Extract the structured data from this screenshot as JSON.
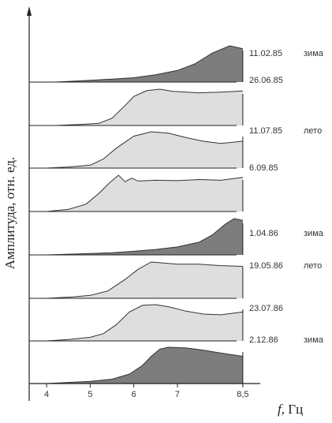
{
  "chart_data": {
    "type": "area",
    "xlabel_symbol": "f",
    "xlabel_unit": ", Гц",
    "ylabel": "Амплитуда, отн. ед.",
    "xlim": [
      3.6,
      8.9
    ],
    "xticks": [
      "4",
      "5",
      "6",
      "7",
      "8,5"
    ],
    "xtick_values": [
      4,
      5,
      6,
      7,
      8.5
    ],
    "grid": false,
    "colors": {
      "dark": "#7d7d7d",
      "light": "#dedede",
      "line": "#333333"
    },
    "series": [
      {
        "date": "11.02.85",
        "season": "зима",
        "shade": "dark",
        "x": [
          4.2,
          5.0,
          5.5,
          6.0,
          6.5,
          7.0,
          7.4,
          7.8,
          8.2,
          8.5
        ],
        "y": [
          0.0,
          0.05,
          0.08,
          0.12,
          0.2,
          0.32,
          0.5,
          0.8,
          1.0,
          0.92
        ]
      },
      {
        "date": "26.06.85",
        "season": "",
        "shade": "light",
        "x": [
          4.2,
          4.8,
          5.2,
          5.5,
          5.8,
          6.0,
          6.3,
          6.6,
          6.9,
          7.5,
          8.0,
          8.5
        ],
        "y": [
          0.0,
          0.03,
          0.06,
          0.2,
          0.55,
          0.8,
          0.96,
          1.0,
          0.94,
          0.9,
          0.92,
          0.95
        ]
      },
      {
        "date": "11.07.85",
        "season": "лето",
        "shade": "light",
        "x": [
          4.0,
          4.5,
          5.0,
          5.3,
          5.6,
          6.0,
          6.4,
          6.8,
          7.2,
          7.6,
          8.0,
          8.5
        ],
        "y": [
          0.0,
          0.03,
          0.08,
          0.25,
          0.55,
          0.88,
          1.0,
          0.96,
          0.84,
          0.74,
          0.68,
          0.74
        ]
      },
      {
        "date": "6.09.85",
        "season": "",
        "shade": "light",
        "x": [
          4.0,
          4.5,
          4.9,
          5.2,
          5.45,
          5.65,
          5.8,
          5.95,
          6.1,
          6.5,
          7.0,
          7.5,
          8.0,
          8.5
        ],
        "y": [
          0.0,
          0.06,
          0.2,
          0.5,
          0.8,
          1.0,
          0.82,
          0.92,
          0.84,
          0.86,
          0.85,
          0.88,
          0.86,
          0.94
        ]
      },
      {
        "date": "1.04.86",
        "season": "зима",
        "shade": "dark",
        "x": [
          4.0,
          5.0,
          5.5,
          6.0,
          6.5,
          7.0,
          7.5,
          7.8,
          8.1,
          8.3,
          8.5
        ],
        "y": [
          0.0,
          0.04,
          0.06,
          0.1,
          0.15,
          0.22,
          0.35,
          0.55,
          0.85,
          1.0,
          0.95
        ]
      },
      {
        "date": "19.05.86",
        "season": "лето",
        "shade": "light",
        "x": [
          4.0,
          4.6,
          5.0,
          5.4,
          5.8,
          6.1,
          6.4,
          6.6,
          7.0,
          7.5,
          8.0,
          8.5
        ],
        "y": [
          0.0,
          0.04,
          0.08,
          0.2,
          0.52,
          0.8,
          1.0,
          0.98,
          0.94,
          0.94,
          0.9,
          0.88
        ]
      },
      {
        "date": "23.07.86",
        "season": "",
        "shade": "light",
        "x": [
          4.0,
          4.5,
          5.0,
          5.3,
          5.6,
          5.9,
          6.2,
          6.5,
          6.8,
          7.2,
          7.6,
          8.0,
          8.5
        ],
        "y": [
          0.0,
          0.04,
          0.1,
          0.2,
          0.45,
          0.8,
          0.98,
          1.0,
          0.94,
          0.82,
          0.74,
          0.72,
          0.8
        ]
      },
      {
        "date": "2.12.86",
        "season": "зима",
        "shade": "dark",
        "x": [
          4.0,
          5.0,
          5.5,
          5.9,
          6.2,
          6.4,
          6.6,
          6.8,
          7.2,
          7.6,
          8.0,
          8.5
        ],
        "y": [
          0.0,
          0.06,
          0.12,
          0.26,
          0.5,
          0.75,
          0.95,
          1.0,
          0.98,
          0.92,
          0.84,
          0.75
        ]
      }
    ]
  }
}
